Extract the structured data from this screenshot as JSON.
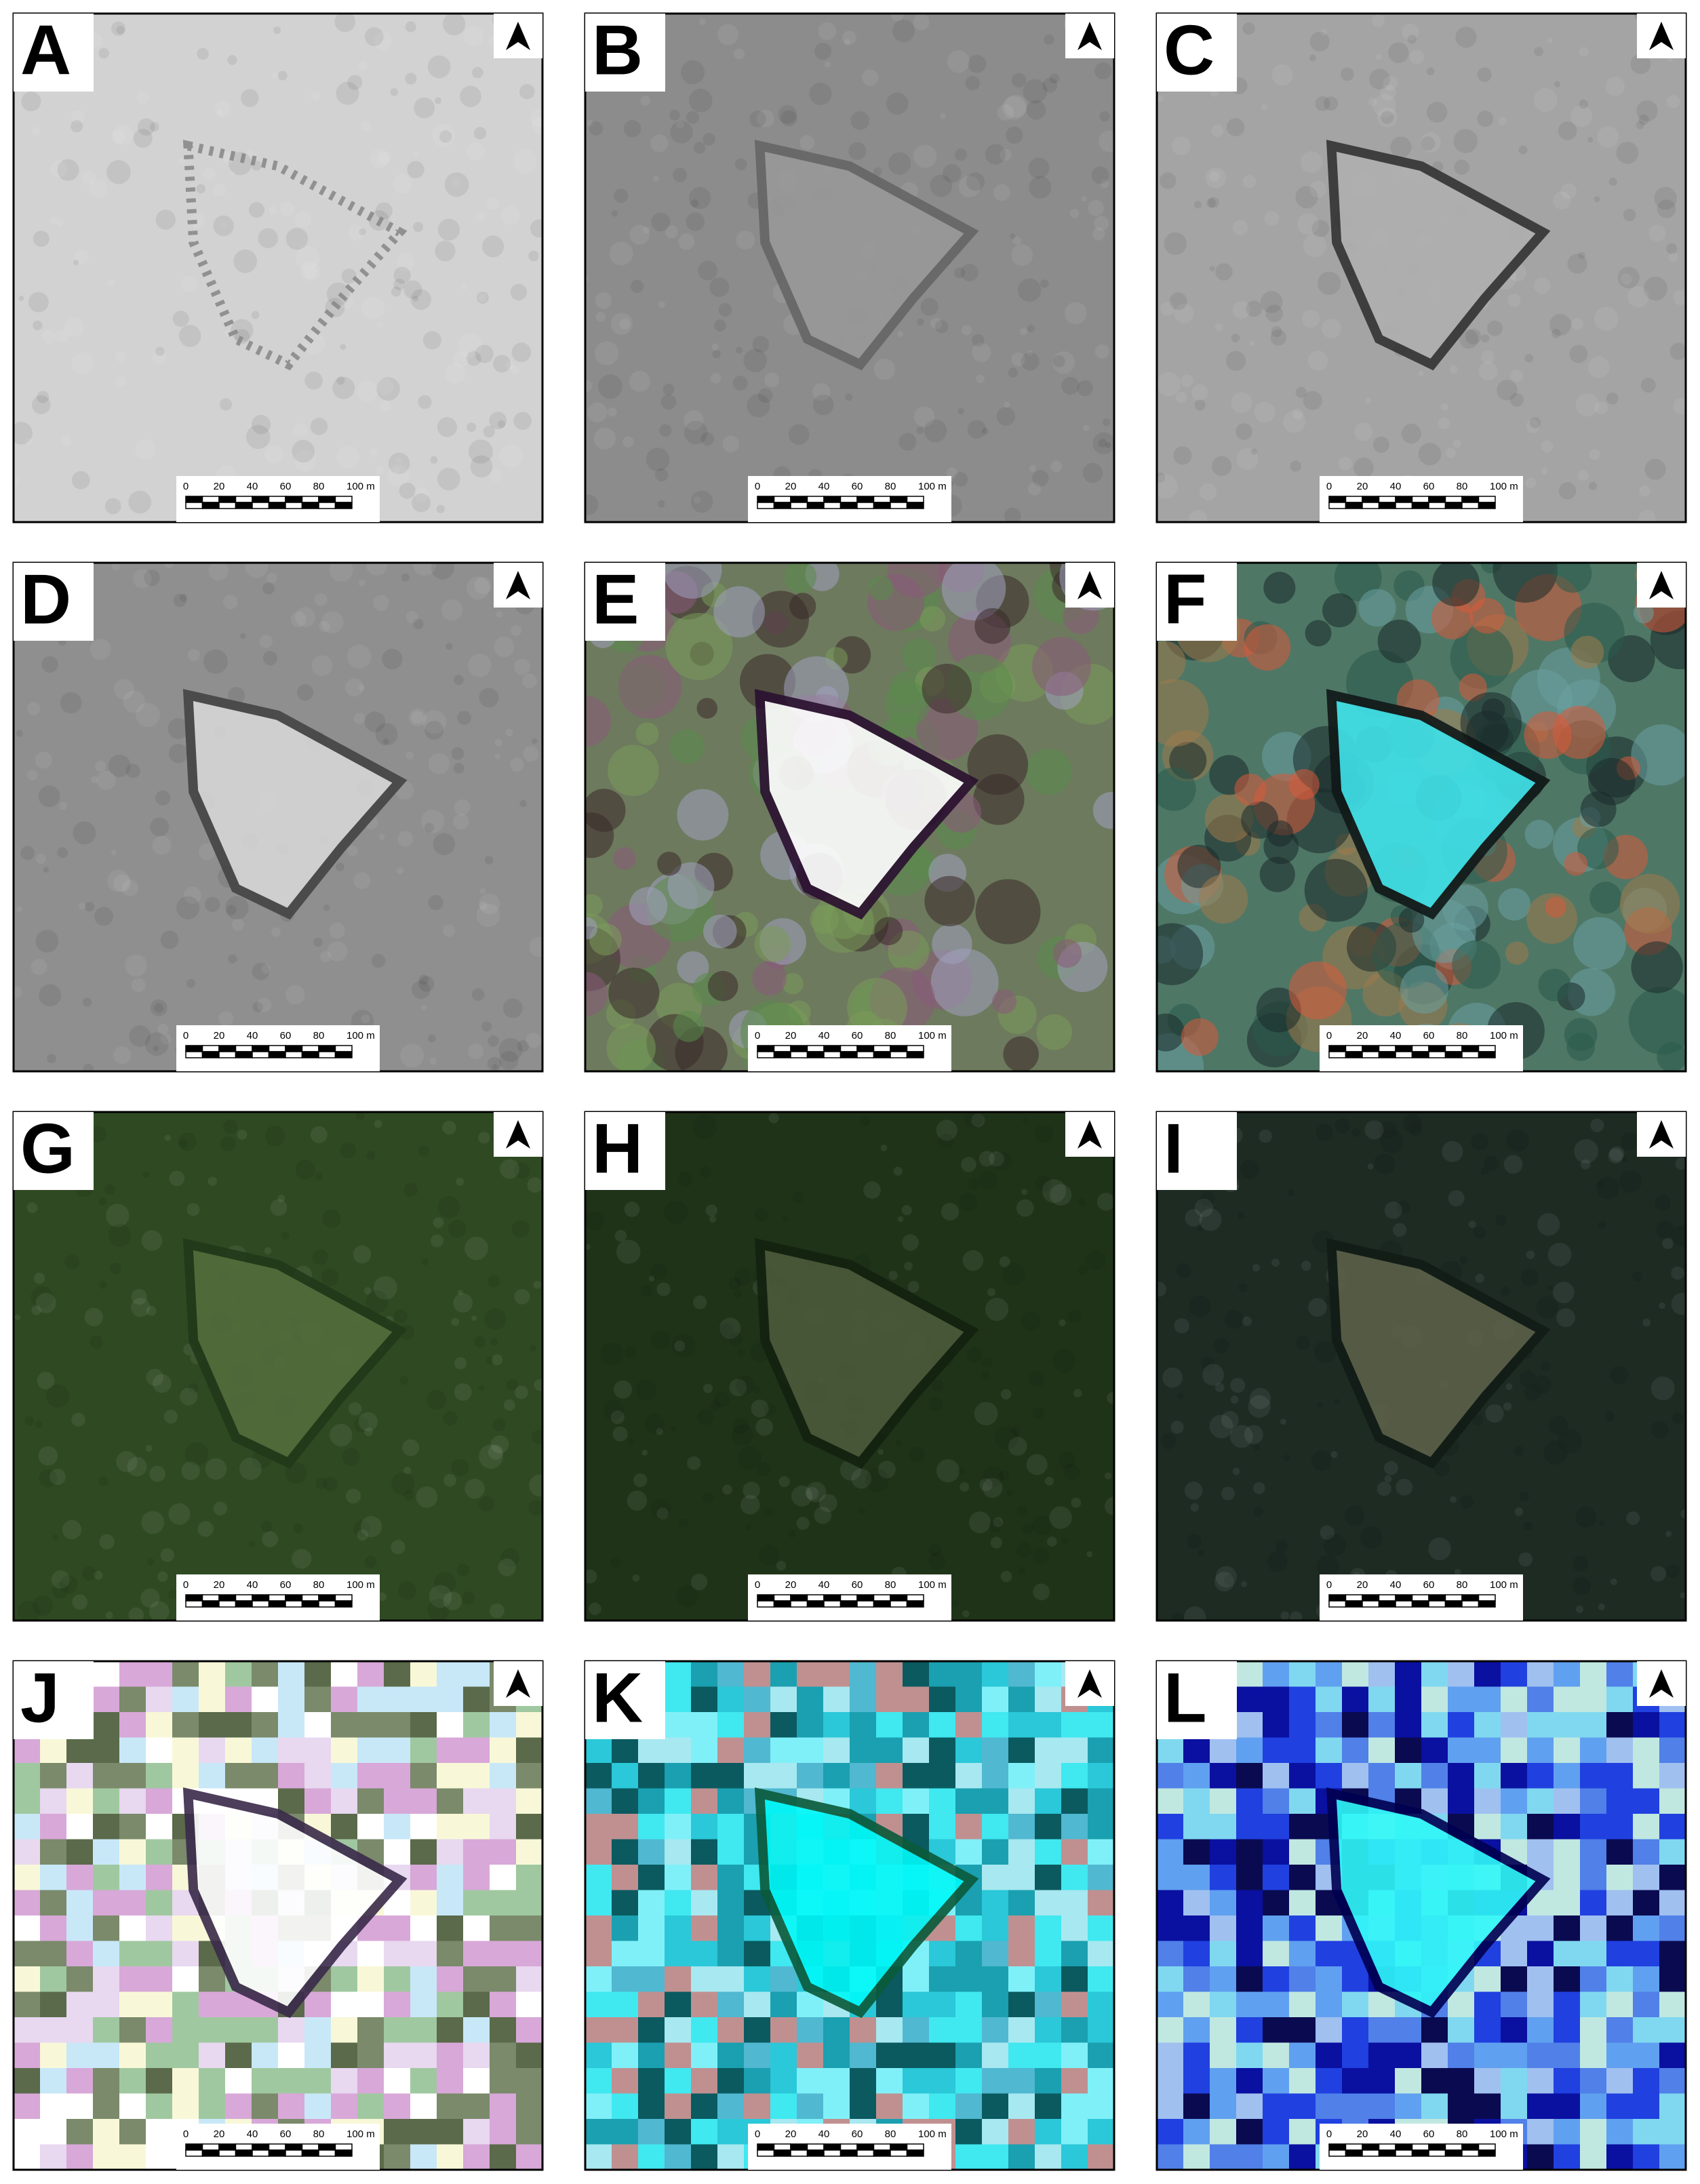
{
  "panels": [
    {
      "label": "A"
    },
    {
      "label": "B"
    },
    {
      "label": "C"
    },
    {
      "label": "D"
    },
    {
      "label": "E"
    },
    {
      "label": "F"
    },
    {
      "label": "G"
    },
    {
      "label": "H"
    },
    {
      "label": "I"
    },
    {
      "label": "J"
    },
    {
      "label": "K"
    },
    {
      "label": "L"
    }
  ],
  "scale_bar": {
    "labels": [
      "0",
      "20",
      "40",
      "60",
      "80",
      "100 m"
    ]
  }
}
